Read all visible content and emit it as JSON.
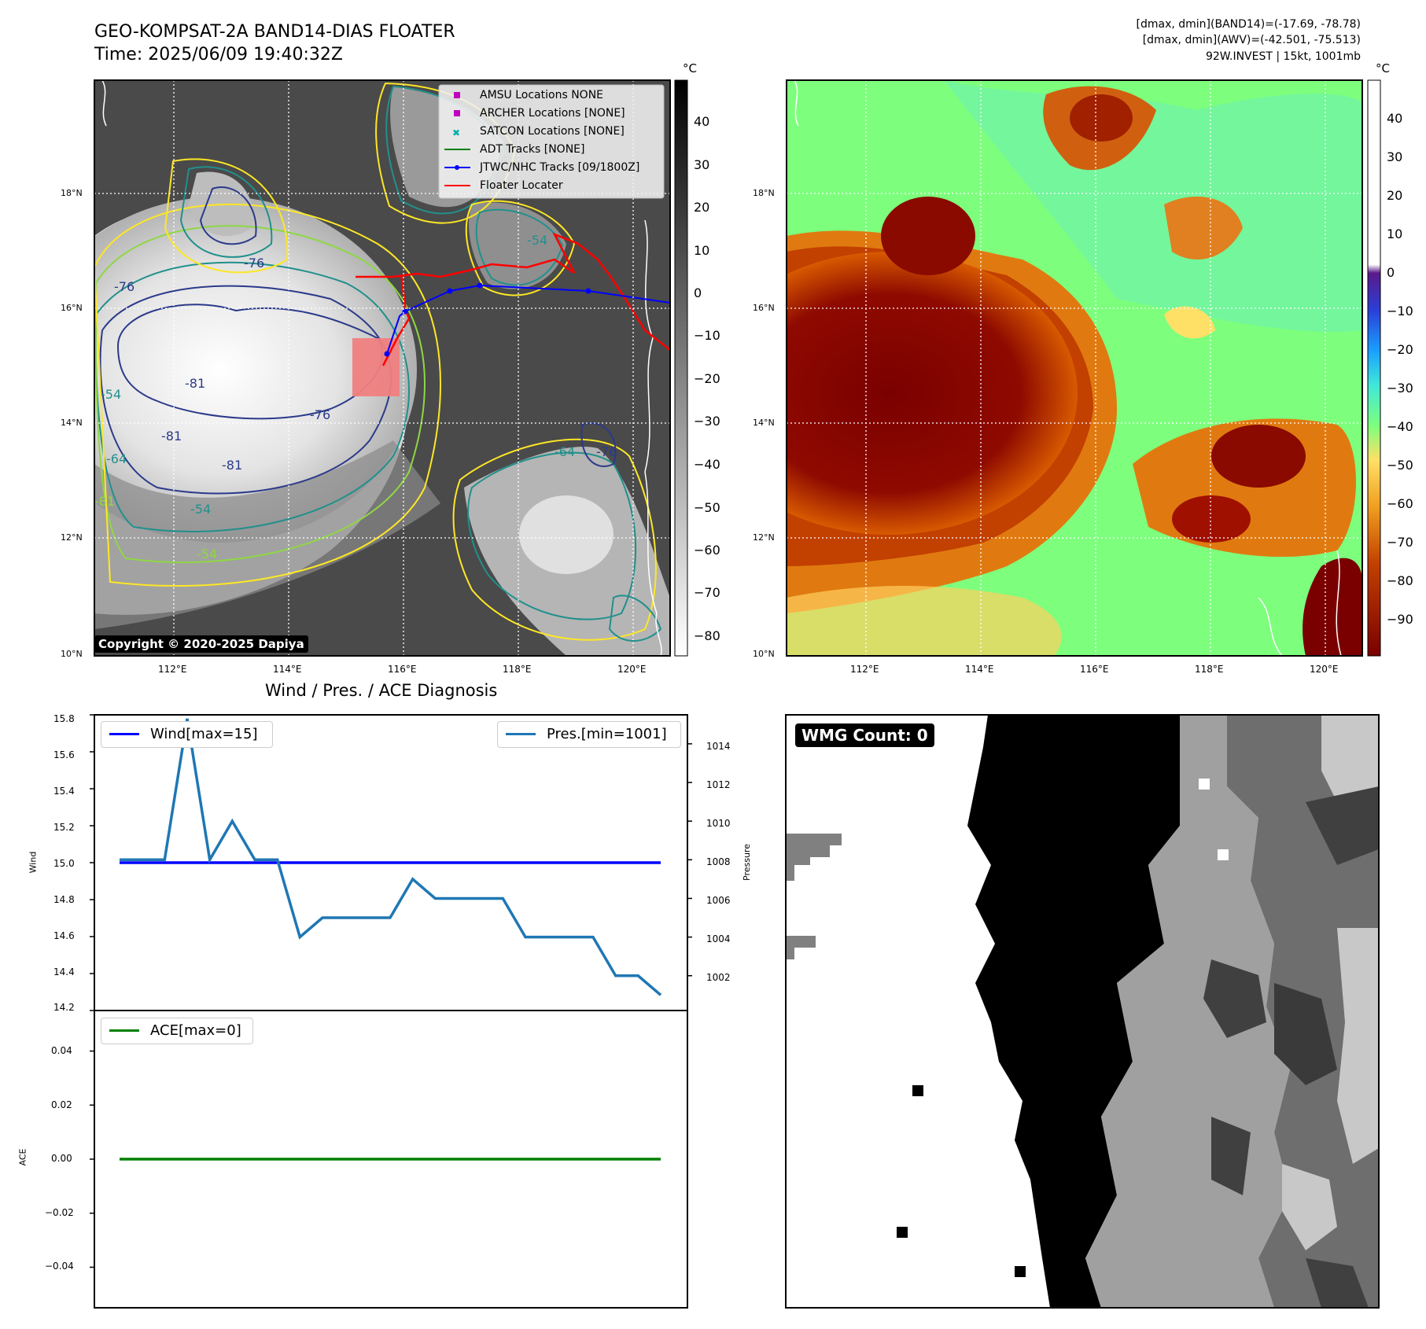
{
  "header": {
    "title": "GEO-KOMPSAT-2A BAND14-DIAS FLOATER",
    "time": "Time: 2025/06/09 19:40:32Z",
    "stats": [
      "[dmax, dmin](BAND14)=(-17.69, -78.78)",
      "[dmax, dmin](AWV)=(-42.501, -75.513)",
      "92W.INVEST | 15kt, 1001mb"
    ]
  },
  "map_panels": {
    "lat_ticks": [
      "10°N",
      "12°N",
      "14°N",
      "16°N",
      "18°N"
    ],
    "lon_ticks": [
      "112°E",
      "114°E",
      "116°E",
      "118°E",
      "120°E"
    ],
    "ir_colorbar": {
      "unit": "°C",
      "ticks": [
        "40",
        "30",
        "20",
        "10",
        "0",
        "−10",
        "−20",
        "−30",
        "−40",
        "−50",
        "−60",
        "−70",
        "−80"
      ]
    },
    "awv_colorbar": {
      "unit": "°C",
      "ticks": [
        "40",
        "30",
        "20",
        "10",
        "0",
        "−10",
        "−20",
        "−30",
        "−40",
        "−50",
        "−60",
        "−70",
        "−80",
        "−90"
      ]
    },
    "legend": [
      {
        "label": "AMSU Locations NONE",
        "marker": "square",
        "color": "#c000c0"
      },
      {
        "label": "ARCHER Locations [NONE]",
        "marker": "square",
        "color": "#c000c0"
      },
      {
        "label": "SATCON Locations [NONE]",
        "marker": "x",
        "color": "#00b0b0"
      },
      {
        "label": "ADT Tracks [NONE]",
        "marker": "line",
        "color": "#008000"
      },
      {
        "label": "JTWC/NHC Tracks [09/1800Z]",
        "marker": "line-dot",
        "color": "#0000ff"
      },
      {
        "label": "Floater Locater",
        "marker": "line",
        "color": "#ff0000"
      }
    ],
    "contour_labels": [
      "-76",
      "-76",
      "-81",
      "-81",
      "-54",
      "-64",
      "-76",
      "-81",
      "-81",
      "-54",
      "-54",
      "-54",
      "-64",
      "-76"
    ],
    "copyright": "Copyright © 2020-2025 Dapiya"
  },
  "chart_data": [
    {
      "type": "line",
      "title": "Wind / Pres. / ACE Diagnosis",
      "ylabel": "Wind",
      "ylim": [
        14.2,
        15.8
      ],
      "yticks": [
        "15.8",
        "15.6",
        "15.4",
        "15.2",
        "15.0",
        "14.8",
        "14.6",
        "14.4",
        "14.2"
      ],
      "ylabel_right": "Pressure",
      "ylim_right": [
        1000.2,
        1015.5
      ],
      "yticks_right": [
        "1014",
        "1012",
        "1010",
        "1008",
        "1006",
        "1004",
        "1002"
      ],
      "series": [
        {
          "name": "Wind[max=15]",
          "color": "#0000ff",
          "axis": "left",
          "values": [
            15,
            15,
            15,
            15,
            15,
            15,
            15,
            15,
            15,
            15,
            15,
            15,
            15,
            15,
            15,
            15,
            15,
            15,
            15,
            15,
            15,
            15,
            15,
            15,
            15
          ]
        },
        {
          "name": "Pres.[min=1001]",
          "color": "#1f77b4",
          "axis": "right",
          "values": [
            1008,
            1008,
            1008,
            1015.3,
            1008,
            1010,
            1008,
            1008,
            1004,
            1005,
            1005,
            1005,
            1005,
            1007,
            1006,
            1006,
            1006,
            1006,
            1004,
            1004,
            1004,
            1004,
            1002,
            1002,
            1001
          ]
        }
      ],
      "legend": [
        "Wind[max=15]",
        "Pres.[min=1001]"
      ]
    },
    {
      "type": "line",
      "ylabel": "ACE",
      "ylim": [
        -0.055,
        0.055
      ],
      "yticks": [
        "0.04",
        "0.02",
        "0.00",
        "−0.02",
        "−0.04"
      ],
      "series": [
        {
          "name": "ACE[max=0]",
          "color": "#008000",
          "values": [
            0,
            0,
            0,
            0,
            0,
            0,
            0,
            0,
            0,
            0,
            0,
            0,
            0,
            0,
            0,
            0,
            0,
            0,
            0,
            0,
            0,
            0,
            0,
            0,
            0
          ]
        }
      ]
    }
  ],
  "wmg_panel": {
    "label": "WMG Count: 0"
  }
}
